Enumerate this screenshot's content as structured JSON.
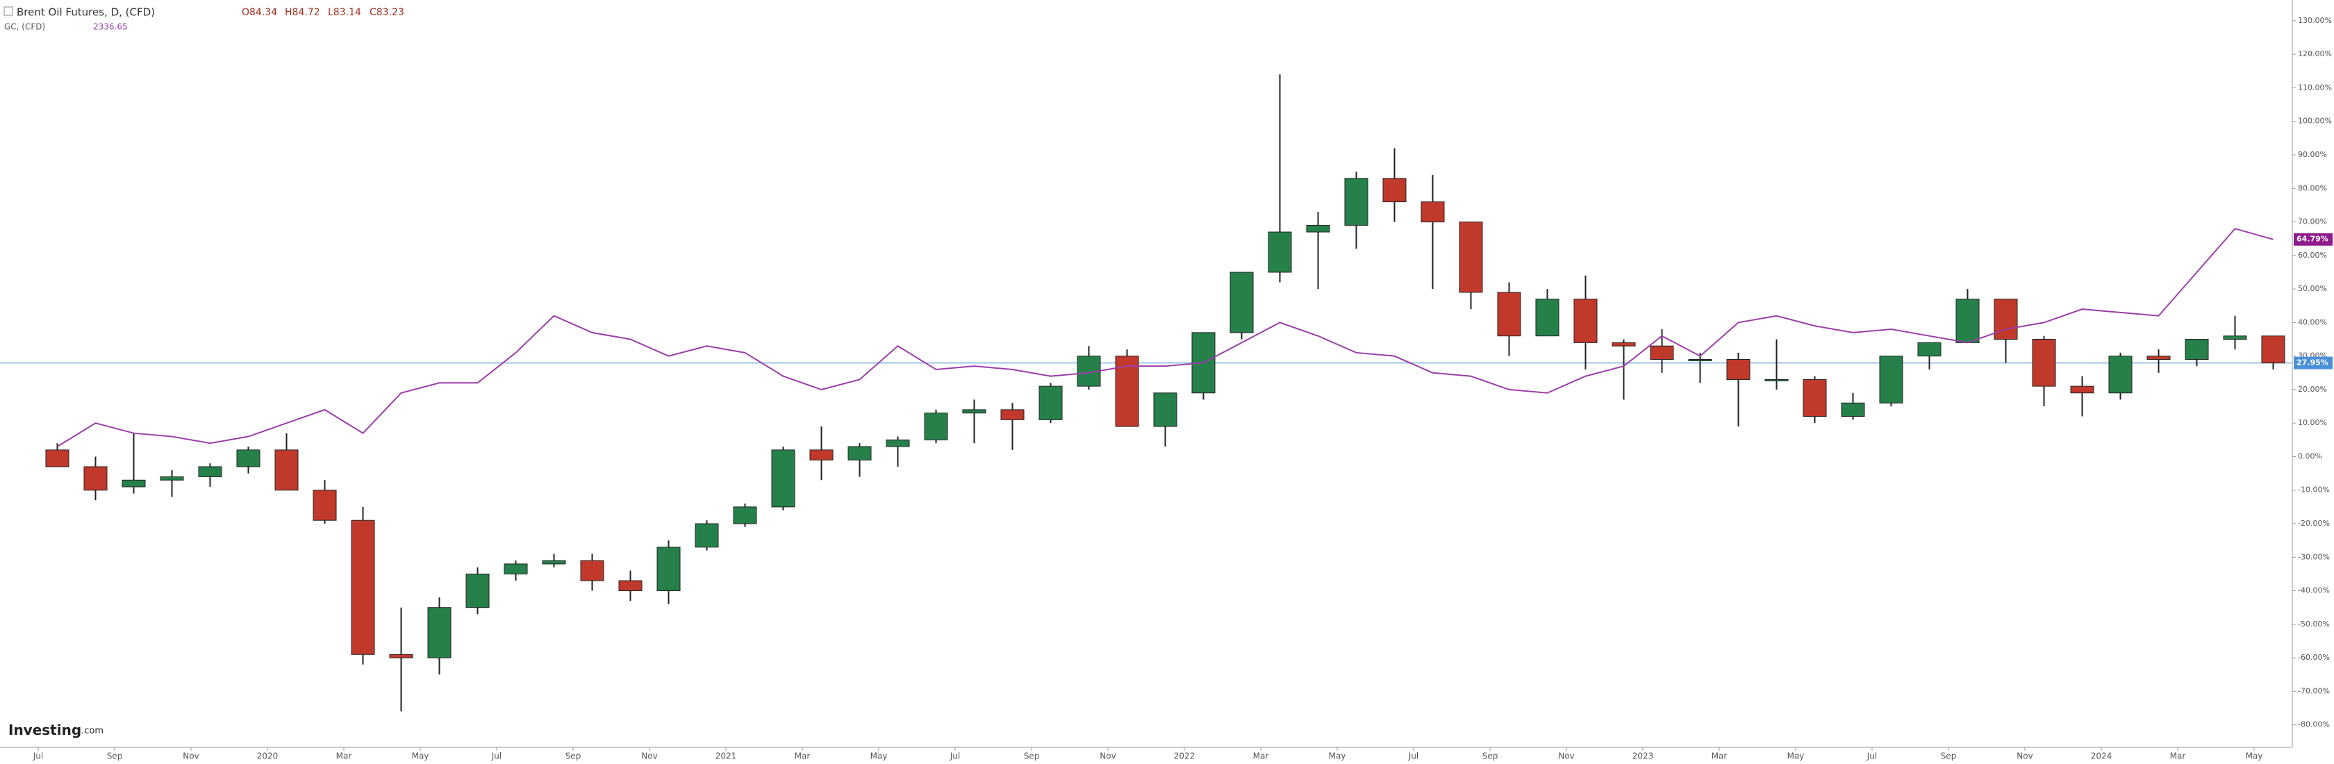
{
  "chart_data": {
    "type": "candlestick",
    "logo": {
      "name": "Investing",
      "suffix": ".com"
    },
    "xlim": [
      "2019-06",
      "2024-06"
    ],
    "xticks": [
      {
        "value": "2019-07",
        "label": "Jul"
      },
      {
        "value": "2019-09",
        "label": "Sep"
      },
      {
        "value": "2019-11",
        "label": "Nov"
      },
      {
        "value": "2020-01",
        "label": "2020"
      },
      {
        "value": "2020-03",
        "label": "Mar"
      },
      {
        "value": "2020-05",
        "label": "May"
      },
      {
        "value": "2020-07",
        "label": "Jul"
      },
      {
        "value": "2020-09",
        "label": "Sep"
      },
      {
        "value": "2020-11",
        "label": "Nov"
      },
      {
        "value": "2021-01",
        "label": "2021"
      },
      {
        "value": "2021-03",
        "label": "Mar"
      },
      {
        "value": "2021-05",
        "label": "May"
      },
      {
        "value": "2021-07",
        "label": "Jul"
      },
      {
        "value": "2021-09",
        "label": "Sep"
      },
      {
        "value": "2021-11",
        "label": "Nov"
      },
      {
        "value": "2022-01",
        "label": "2022"
      },
      {
        "value": "2022-03",
        "label": "Mar"
      },
      {
        "value": "2022-05",
        "label": "May"
      },
      {
        "value": "2022-07",
        "label": "Jul"
      },
      {
        "value": "2022-09",
        "label": "Sep"
      },
      {
        "value": "2022-11",
        "label": "Nov"
      },
      {
        "value": "2023-01",
        "label": "2023"
      },
      {
        "value": "2023-03",
        "label": "Mar"
      },
      {
        "value": "2023-05",
        "label": "May"
      },
      {
        "value": "2023-07",
        "label": "Jul"
      },
      {
        "value": "2023-09",
        "label": "Sep"
      },
      {
        "value": "2023-11",
        "label": "Nov"
      },
      {
        "value": "2024-01",
        "label": "2024"
      },
      {
        "value": "2024-03",
        "label": "Mar"
      },
      {
        "value": "2024-05",
        "label": "May"
      }
    ],
    "ylim": [
      -86.7,
      136.2
    ],
    "yticks": [
      {
        "value": 130,
        "label": "130.00%"
      },
      {
        "value": 120,
        "label": "120.00%"
      },
      {
        "value": 110,
        "label": "110.00%"
      },
      {
        "value": 100,
        "label": "100.00%"
      },
      {
        "value": 90,
        "label": "90.00%"
      },
      {
        "value": 80,
        "label": "80.00%"
      },
      {
        "value": 70,
        "label": "70.00%"
      },
      {
        "value": 60,
        "label": "60.00%"
      },
      {
        "value": 50,
        "label": "50.00%"
      },
      {
        "value": 40,
        "label": "40.00%"
      },
      {
        "value": 30,
        "label": "30.00%"
      },
      {
        "value": 20,
        "label": "20.00%"
      },
      {
        "value": 10,
        "label": "10.00%"
      },
      {
        "value": 0,
        "label": "0.00%"
      },
      {
        "value": -10,
        "label": "-10.00%"
      },
      {
        "value": -20,
        "label": "-20.00%"
      },
      {
        "value": -30,
        "label": "-30.00%"
      },
      {
        "value": -40,
        "label": "-40.00%"
      },
      {
        "value": -50,
        "label": "-50.00%"
      },
      {
        "value": -60,
        "label": "-60.00%"
      },
      {
        "value": -70,
        "label": "-70.00%"
      },
      {
        "value": -80,
        "label": "-80.00%"
      }
    ],
    "x": [
      "2019-07",
      "2019-08",
      "2019-09",
      "2019-10",
      "2019-11",
      "2019-12",
      "2020-01",
      "2020-02",
      "2020-03",
      "2020-04",
      "2020-05",
      "2020-06",
      "2020-07",
      "2020-08",
      "2020-09",
      "2020-10",
      "2020-11",
      "2020-12",
      "2021-01",
      "2021-02",
      "2021-03",
      "2021-04",
      "2021-05",
      "2021-06",
      "2021-07",
      "2021-08",
      "2021-09",
      "2021-10",
      "2021-11",
      "2021-12",
      "2022-01",
      "2022-02",
      "2022-03",
      "2022-04",
      "2022-05",
      "2022-06",
      "2022-07",
      "2022-08",
      "2022-09",
      "2022-10",
      "2022-11",
      "2022-12",
      "2023-01",
      "2023-02",
      "2023-03",
      "2023-04",
      "2023-05",
      "2023-06",
      "2023-07",
      "2023-08",
      "2023-09",
      "2023-10",
      "2023-11",
      "2023-12",
      "2024-01",
      "2024-02",
      "2024-03",
      "2024-04",
      "2024-05"
    ],
    "series": [
      {
        "name": "Brent Oil Futures, D, (CFD)",
        "up_color": "#26804a",
        "down_color": "#c0392b",
        "ohlc": [
          {
            "value": 84.34,
            "label": "O84.34"
          },
          {
            "value": 84.72,
            "label": "H84.72"
          },
          {
            "value": 83.14,
            "label": "L83.14"
          },
          {
            "value": 83.23,
            "label": "C83.23"
          }
        ],
        "open": [
          2,
          -3,
          -9,
          -7,
          -6,
          -3,
          2,
          -10,
          -19,
          -59,
          -60,
          -45,
          -35,
          -32,
          -31,
          -37,
          -40,
          -27,
          -20,
          -15,
          2,
          -1,
          3,
          5,
          13,
          14,
          11,
          21,
          30,
          9,
          19,
          37,
          55,
          67,
          69,
          83,
          76,
          70,
          49,
          36,
          47,
          34,
          33,
          29,
          29,
          23,
          23,
          12,
          16,
          30,
          34,
          47,
          35,
          21,
          19,
          30,
          29,
          35,
          36
        ],
        "high": [
          4,
          0,
          7,
          -4,
          -2,
          3,
          7,
          -7,
          -15,
          -45,
          -42,
          -33,
          -31,
          -29,
          -29,
          -34,
          -25,
          -19,
          -14,
          3,
          9,
          4,
          6,
          14,
          17,
          16,
          22,
          33,
          32,
          19,
          37,
          55,
          114,
          73,
          85,
          92,
          84,
          70,
          52,
          50,
          54,
          35,
          38,
          31,
          31,
          35,
          24,
          19,
          30,
          34,
          50,
          47,
          36,
          24,
          31,
          32,
          35,
          42,
          36
        ],
        "low": [
          -3,
          -13,
          -11,
          -12,
          -9,
          -5,
          -8,
          -20,
          -62,
          -76,
          -65,
          -47,
          -37,
          -33,
          -40,
          -43,
          -44,
          -28,
          -21,
          -16,
          -7,
          -6,
          -3,
          4,
          4,
          2,
          10,
          20,
          9,
          3,
          17,
          35,
          52,
          50,
          62,
          70,
          50,
          44,
          30,
          36,
          26,
          17,
          25,
          22,
          9,
          20,
          10,
          11,
          15,
          26,
          34,
          28,
          15,
          12,
          17,
          25,
          27,
          32,
          26
        ],
        "close": [
          -3,
          -10,
          -7,
          -6,
          -3,
          2,
          -10,
          -19,
          -59,
          -60,
          -45,
          -35,
          -32,
          -31,
          -37,
          -40,
          -27,
          -20,
          -15,
          2,
          -1,
          3,
          5,
          13,
          14,
          11,
          21,
          30,
          9,
          19,
          37,
          55,
          67,
          69,
          83,
          76,
          70,
          49,
          36,
          47,
          34,
          33,
          29,
          29,
          23,
          23,
          12,
          16,
          30,
          34,
          47,
          35,
          21,
          19,
          30,
          29,
          35,
          36,
          27.95
        ],
        "price_line": {
          "value": 27.95,
          "label": "27.95%",
          "color": "#4a90d9"
        }
      },
      {
        "name": "GC, (CFD)",
        "color": "#9b3ea8",
        "price": 2336.65,
        "values": [
          3,
          10,
          7,
          6,
          4,
          6,
          10,
          14,
          7,
          19,
          22,
          22,
          31,
          42,
          37,
          35,
          30,
          33,
          31,
          24,
          20,
          23,
          33,
          26,
          27,
          26,
          24,
          25,
          27,
          27,
          28,
          34,
          40,
          36,
          31,
          30,
          25,
          24,
          20,
          19,
          24,
          27,
          36,
          30,
          40,
          42,
          39,
          37,
          38,
          36,
          34,
          38,
          40,
          44,
          43,
          42,
          55,
          68,
          64.79
        ],
        "price_tag": {
          "value": 64.79,
          "label": "64.79%"
        }
      }
    ]
  }
}
